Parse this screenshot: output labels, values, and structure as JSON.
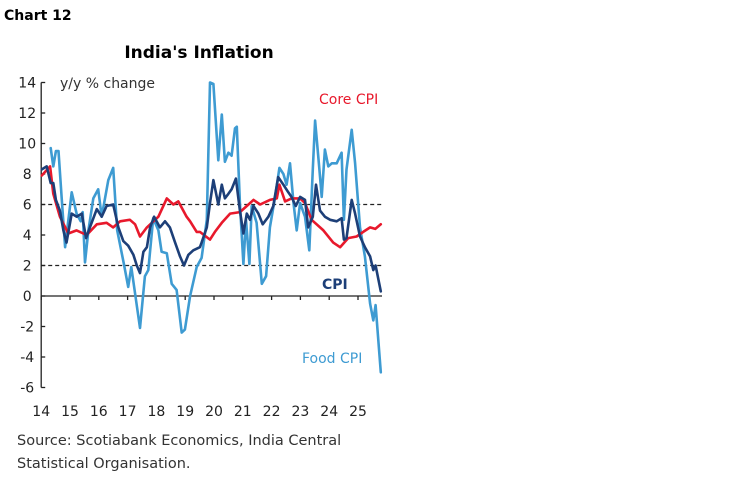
{
  "header": {
    "chart_number": "Chart 12"
  },
  "chart_data": {
    "type": "line",
    "title": "India's Inflation",
    "ylabel": "y/y % change",
    "xlabel": "",
    "ylim": [
      -6,
      14
    ],
    "yticks": [
      14,
      12,
      10,
      8,
      6,
      4,
      2,
      0,
      -2,
      -4,
      -6
    ],
    "xlim": [
      2014,
      2025.8
    ],
    "xticks": [
      "14",
      "15",
      "16",
      "17",
      "18",
      "19",
      "20",
      "21",
      "22",
      "23",
      "24",
      "25"
    ],
    "reference_lines": [
      6,
      2
    ],
    "grid": false,
    "colors": {
      "core": "#e8192c",
      "cpi": "#1d3f78",
      "food": "#3e9bd2"
    },
    "series": [
      {
        "name": "Core CPI",
        "key": "core",
        "points": [
          [
            2014.02,
            7.9
          ],
          [
            2014.31,
            8.5
          ],
          [
            2014.42,
            6.7
          ],
          [
            2014.65,
            5.2
          ],
          [
            2014.94,
            4.1
          ],
          [
            2015.23,
            4.3
          ],
          [
            2015.58,
            4.0
          ],
          [
            2015.93,
            4.7
          ],
          [
            2016.27,
            4.8
          ],
          [
            2016.5,
            4.5
          ],
          [
            2016.74,
            4.9
          ],
          [
            2017.08,
            5.0
          ],
          [
            2017.26,
            4.7
          ],
          [
            2017.43,
            3.9
          ],
          [
            2017.67,
            4.5
          ],
          [
            2018.07,
            5.2
          ],
          [
            2018.36,
            6.4
          ],
          [
            2018.59,
            6.0
          ],
          [
            2018.76,
            6.2
          ],
          [
            2019.05,
            5.2
          ],
          [
            2019.17,
            4.9
          ],
          [
            2019.4,
            4.2
          ],
          [
            2019.51,
            4.2
          ],
          [
            2019.86,
            3.7
          ],
          [
            2020.03,
            4.2
          ],
          [
            2020.27,
            4.8
          ],
          [
            2020.56,
            5.4
          ],
          [
            2020.9,
            5.5
          ],
          [
            2021.14,
            5.9
          ],
          [
            2021.37,
            6.3
          ],
          [
            2021.6,
            6.0
          ],
          [
            2021.94,
            6.3
          ],
          [
            2022.18,
            6.4
          ],
          [
            2022.27,
            7.3
          ],
          [
            2022.47,
            6.2
          ],
          [
            2022.69,
            6.4
          ],
          [
            2022.99,
            6.4
          ],
          [
            2023.16,
            6.1
          ],
          [
            2023.39,
            5.0
          ],
          [
            2023.8,
            4.3
          ],
          [
            2024.14,
            3.5
          ],
          [
            2024.38,
            3.2
          ],
          [
            2024.66,
            3.8
          ],
          [
            2024.95,
            3.9
          ],
          [
            2025.18,
            4.2
          ],
          [
            2025.42,
            4.5
          ],
          [
            2025.6,
            4.4
          ],
          [
            2025.79,
            4.7
          ]
        ]
      },
      {
        "name": "CPI",
        "key": "cpi",
        "points": [
          [
            2014.02,
            8.3
          ],
          [
            2014.19,
            8.5
          ],
          [
            2014.33,
            7.4
          ],
          [
            2014.42,
            7.4
          ],
          [
            2014.51,
            6.3
          ],
          [
            2014.65,
            5.6
          ],
          [
            2014.77,
            4.3
          ],
          [
            2014.88,
            3.5
          ],
          [
            2015.06,
            5.4
          ],
          [
            2015.23,
            5.2
          ],
          [
            2015.41,
            5.4
          ],
          [
            2015.56,
            3.8
          ],
          [
            2015.69,
            4.5
          ],
          [
            2015.93,
            5.7
          ],
          [
            2016.1,
            5.2
          ],
          [
            2016.27,
            5.9
          ],
          [
            2016.5,
            6.0
          ],
          [
            2016.68,
            4.5
          ],
          [
            2016.85,
            3.6
          ],
          [
            2017.02,
            3.3
          ],
          [
            2017.2,
            2.7
          ],
          [
            2017.32,
            2.0
          ],
          [
            2017.43,
            1.5
          ],
          [
            2017.55,
            2.9
          ],
          [
            2017.67,
            3.2
          ],
          [
            2017.78,
            4.5
          ],
          [
            2017.92,
            5.2
          ],
          [
            2018.12,
            4.5
          ],
          [
            2018.3,
            4.9
          ],
          [
            2018.47,
            4.5
          ],
          [
            2018.65,
            3.5
          ],
          [
            2018.82,
            2.6
          ],
          [
            2018.96,
            2.0
          ],
          [
            2019.11,
            2.7
          ],
          [
            2019.28,
            3.0
          ],
          [
            2019.51,
            3.2
          ],
          [
            2019.57,
            3.5
          ],
          [
            2019.75,
            4.5
          ],
          [
            2019.86,
            6.1
          ],
          [
            2019.98,
            7.6
          ],
          [
            2020.15,
            6.0
          ],
          [
            2020.27,
            7.3
          ],
          [
            2020.38,
            6.4
          ],
          [
            2020.5,
            6.7
          ],
          [
            2020.61,
            7.0
          ],
          [
            2020.76,
            7.7
          ],
          [
            2020.9,
            5.6
          ],
          [
            2021.02,
            4.1
          ],
          [
            2021.14,
            5.4
          ],
          [
            2021.25,
            5.0
          ],
          [
            2021.37,
            5.9
          ],
          [
            2021.54,
            5.4
          ],
          [
            2021.69,
            4.7
          ],
          [
            2021.89,
            5.2
          ],
          [
            2022.06,
            5.9
          ],
          [
            2022.23,
            7.8
          ],
          [
            2022.41,
            7.3
          ],
          [
            2022.58,
            6.8
          ],
          [
            2022.69,
            6.5
          ],
          [
            2022.84,
            5.9
          ],
          [
            2022.99,
            6.5
          ],
          [
            2023.16,
            6.3
          ],
          [
            2023.27,
            4.5
          ],
          [
            2023.43,
            5.2
          ],
          [
            2023.54,
            7.3
          ],
          [
            2023.68,
            5.6
          ],
          [
            2023.85,
            5.2
          ],
          [
            2024.03,
            5.0
          ],
          [
            2024.26,
            4.9
          ],
          [
            2024.43,
            5.1
          ],
          [
            2024.51,
            3.7
          ],
          [
            2024.6,
            3.8
          ],
          [
            2024.78,
            6.3
          ],
          [
            2024.9,
            5.4
          ],
          [
            2025.07,
            3.9
          ],
          [
            2025.24,
            3.2
          ],
          [
            2025.42,
            2.6
          ],
          [
            2025.53,
            1.7
          ],
          [
            2025.61,
            2.0
          ],
          [
            2025.79,
            0.3
          ]
        ]
      },
      {
        "name": "Food CPI",
        "key": "food",
        "points": [
          [
            2014.33,
            9.7
          ],
          [
            2014.42,
            8.5
          ],
          [
            2014.51,
            9.5
          ],
          [
            2014.6,
            9.5
          ],
          [
            2014.71,
            6.5
          ],
          [
            2014.83,
            3.2
          ],
          [
            2015.06,
            6.8
          ],
          [
            2015.23,
            5.4
          ],
          [
            2015.37,
            4.9
          ],
          [
            2015.44,
            5.5
          ],
          [
            2015.52,
            2.2
          ],
          [
            2015.64,
            4.3
          ],
          [
            2015.81,
            6.4
          ],
          [
            2015.98,
            7.0
          ],
          [
            2016.1,
            5.2
          ],
          [
            2016.33,
            7.6
          ],
          [
            2016.5,
            8.4
          ],
          [
            2016.64,
            4.3
          ],
          [
            2016.87,
            2.1
          ],
          [
            2017.02,
            0.6
          ],
          [
            2017.13,
            1.9
          ],
          [
            2017.43,
            -2.1
          ],
          [
            2017.6,
            1.3
          ],
          [
            2017.72,
            1.7
          ],
          [
            2017.89,
            5.1
          ],
          [
            2018.07,
            4.3
          ],
          [
            2018.18,
            2.9
          ],
          [
            2018.36,
            2.8
          ],
          [
            2018.53,
            0.8
          ],
          [
            2018.7,
            0.4
          ],
          [
            2018.88,
            -2.4
          ],
          [
            2018.99,
            -2.2
          ],
          [
            2019.17,
            0.0
          ],
          [
            2019.4,
            1.9
          ],
          [
            2019.57,
            2.5
          ],
          [
            2019.75,
            5.0
          ],
          [
            2019.86,
            14.0
          ],
          [
            2019.98,
            13.9
          ],
          [
            2020.15,
            8.9
          ],
          [
            2020.27,
            11.9
          ],
          [
            2020.38,
            8.8
          ],
          [
            2020.5,
            9.4
          ],
          [
            2020.61,
            9.2
          ],
          [
            2020.73,
            11.0
          ],
          [
            2020.79,
            11.1
          ],
          [
            2020.9,
            6.1
          ],
          [
            2021.02,
            2.1
          ],
          [
            2021.11,
            5.0
          ],
          [
            2021.23,
            2.1
          ],
          [
            2021.31,
            5.9
          ],
          [
            2021.48,
            4.8
          ],
          [
            2021.66,
            0.8
          ],
          [
            2021.81,
            1.3
          ],
          [
            2021.94,
            4.5
          ],
          [
            2022.12,
            6.5
          ],
          [
            2022.27,
            8.4
          ],
          [
            2022.41,
            8.0
          ],
          [
            2022.52,
            7.3
          ],
          [
            2022.64,
            8.7
          ],
          [
            2022.76,
            6.1
          ],
          [
            2022.87,
            4.3
          ],
          [
            2022.99,
            6.1
          ],
          [
            2023.16,
            5.2
          ],
          [
            2023.31,
            3.0
          ],
          [
            2023.43,
            8.3
          ],
          [
            2023.51,
            11.5
          ],
          [
            2023.66,
            8.3
          ],
          [
            2023.74,
            6.5
          ],
          [
            2023.85,
            9.6
          ],
          [
            2023.97,
            8.5
          ],
          [
            2024.09,
            8.7
          ],
          [
            2024.26,
            8.7
          ],
          [
            2024.43,
            9.4
          ],
          [
            2024.51,
            5.0
          ],
          [
            2024.6,
            8.3
          ],
          [
            2024.78,
            10.9
          ],
          [
            2024.9,
            8.7
          ],
          [
            2025.07,
            4.5
          ],
          [
            2025.24,
            2.6
          ],
          [
            2025.42,
            -0.5
          ],
          [
            2025.53,
            -1.6
          ],
          [
            2025.61,
            -0.6
          ],
          [
            2025.79,
            -5.0
          ]
        ]
      }
    ]
  },
  "footer": {
    "source_line1": "Source: Scotiabank Economics, India Central",
    "source_line2": "Statistical Organisation."
  }
}
